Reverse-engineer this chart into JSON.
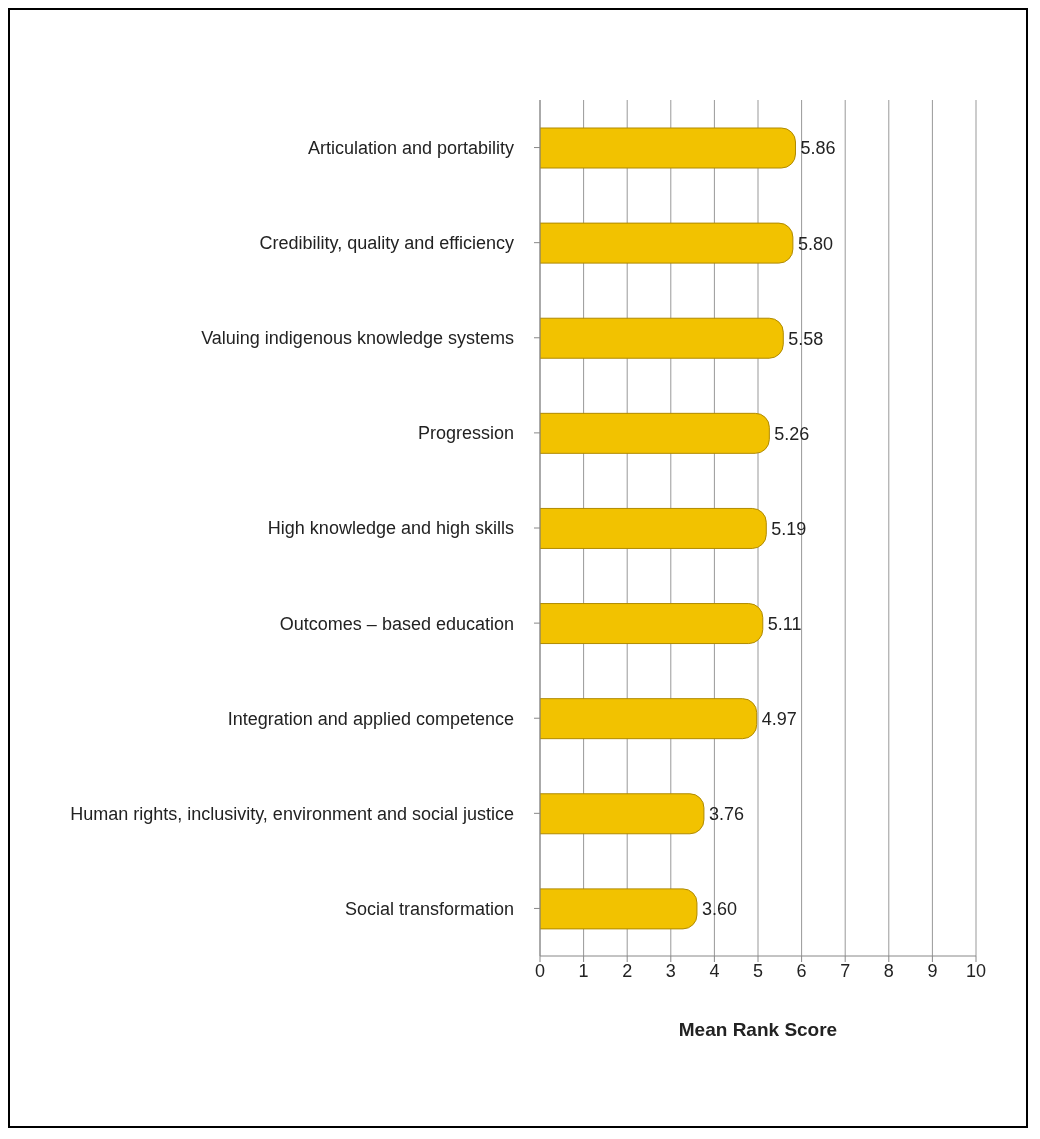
{
  "chart_data": {
    "type": "bar",
    "orientation": "horizontal",
    "xlabel": "Mean Rank Score",
    "categories": [
      "Articulation and portability",
      "Credibility, quality and efficiency",
      "Valuing indigenous knowledge systems",
      "Progression",
      "High knowledge and high skills",
      "Outcomes – based education",
      "Integration and applied competence",
      "Human rights, inclusivity, environment and social justice",
      "Social transformation"
    ],
    "values": [
      5.86,
      5.8,
      5.58,
      5.26,
      5.19,
      5.11,
      4.97,
      3.76,
      3.6
    ],
    "value_labels": [
      "5.86",
      "5.80",
      "5.58",
      "5.26",
      "5.19",
      "5.11",
      "4.97",
      "3.76",
      "3.60"
    ],
    "color": "#f2c200",
    "xlim": [
      0,
      10
    ],
    "xticks": [
      0,
      1,
      2,
      3,
      4,
      5,
      6,
      7,
      8,
      9,
      10
    ],
    "grid": "x"
  }
}
